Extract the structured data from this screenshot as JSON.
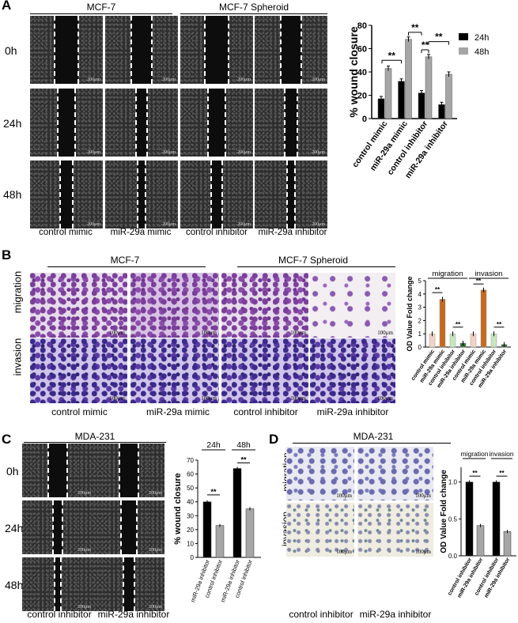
{
  "panelA": {
    "label": "A",
    "headers": [
      "MCF-7",
      "MCF-7 Spheroid"
    ],
    "rows": [
      "0h",
      "24h",
      "48h"
    ],
    "cols": [
      "control mimic",
      "miR-29a mimic",
      "control inhibitor",
      "miR-29a inhibitor"
    ],
    "scale": "200μm"
  },
  "panelB": {
    "label": "B",
    "headers": [
      "MCF-7",
      "MCF-7 Spheroid"
    ],
    "rows": [
      "migration",
      "invasion"
    ],
    "cols": [
      "control mimic",
      "miR-29a mimic",
      "control inhibitor",
      "miR-29a inhibitor"
    ],
    "scale": "100μm"
  },
  "panelC": {
    "label": "C",
    "header": "MDA-231",
    "rows": [
      "0h",
      "24h",
      "48h"
    ],
    "cols": [
      "control inhibitor",
      "miR-29a inhibitor"
    ],
    "scale": "200μm"
  },
  "panelD": {
    "label": "D",
    "header": "MDA-231",
    "rows": [
      "migration",
      "invasion"
    ],
    "cols": [
      "control inhibitor",
      "miR-29a inhibitor"
    ],
    "scale": "100μm"
  },
  "chart_data": [
    {
      "id": "A",
      "type": "bar",
      "ylabel": "% wound closure",
      "ylim": [
        0,
        80
      ],
      "yticks": [
        0,
        20,
        40,
        60,
        80
      ],
      "categories": [
        "control mimic",
        "miR-29a mimic",
        "control inhibitor",
        "miR-29a inhibitor"
      ],
      "series": [
        {
          "name": "24h",
          "color": "#000000",
          "values": [
            17,
            32,
            22,
            12
          ]
        },
        {
          "name": "48h",
          "color": "#a6a6a6",
          "values": [
            43,
            68,
            53,
            38
          ]
        }
      ],
      "significance": [
        "**",
        "**",
        "**",
        "**"
      ],
      "legend": "top-right"
    },
    {
      "id": "B",
      "type": "bar",
      "ylabel": "OD Value Fold change",
      "ylim": [
        0,
        5
      ],
      "yticks": [
        0,
        1,
        2,
        3,
        4,
        5
      ],
      "groups": [
        "migration",
        "invasion"
      ],
      "categories": [
        "control mimic",
        "miR-29a mimic",
        "control inhibitor",
        "miR-29a inhibitor",
        "control mimic",
        "miR-29a mimic",
        "control inhibitor",
        "miR-29a inhibitor"
      ],
      "values": [
        1.0,
        3.6,
        1.0,
        0.3,
        1.0,
        4.3,
        1.0,
        0.2
      ],
      "colors": [
        "#f2d3c4",
        "#c56a1c",
        "#c7e6bf",
        "#2e6b2e",
        "#f2d3c4",
        "#c56a1c",
        "#c7e6bf",
        "#2e6b2e"
      ],
      "significance": [
        "**",
        "**",
        "**",
        "**"
      ]
    },
    {
      "id": "C",
      "type": "bar",
      "ylabel": "% wound closure",
      "ylim": [
        0,
        70
      ],
      "yticks": [
        0,
        10,
        20,
        30,
        40,
        50,
        60,
        70
      ],
      "groups": [
        "24h",
        "48h"
      ],
      "categories": [
        "miR-29a inhibitor",
        "control inhibitor",
        "miR-29a inhibitor",
        "control inhibitor"
      ],
      "values": [
        40,
        23,
        64,
        35
      ],
      "colors": [
        "#000000",
        "#a6a6a6",
        "#000000",
        "#a6a6a6"
      ],
      "significance": [
        "**",
        "**"
      ]
    },
    {
      "id": "D",
      "type": "bar",
      "ylabel": "OD Value Fold change",
      "ylim": [
        0,
        1.2
      ],
      "yticks": [
        "0.0",
        "0.5",
        "1.0"
      ],
      "groups": [
        "migration",
        "invasion"
      ],
      "categories": [
        "control inhibitor",
        "miR-29a inhibitor",
        "control inhibitor",
        "miR-29a inhibitor"
      ],
      "values": [
        1.0,
        0.41,
        1.0,
        0.33
      ],
      "colors": [
        "#000000",
        "#a6a6a6",
        "#000000",
        "#a6a6a6"
      ],
      "significance": [
        "**",
        "**"
      ]
    }
  ]
}
